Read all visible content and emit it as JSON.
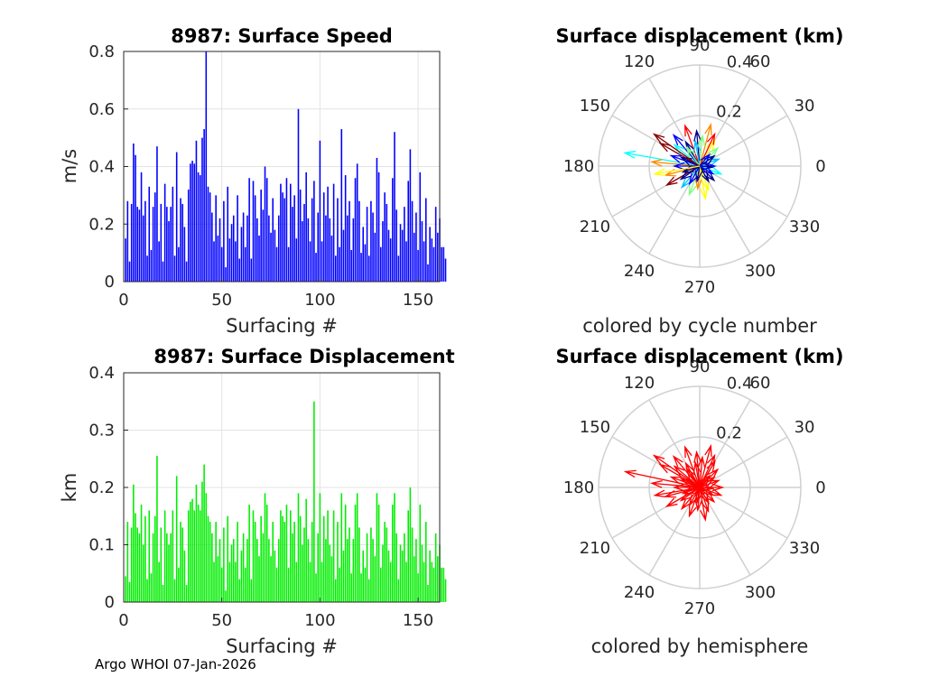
{
  "footer": "Argo WHOI 07-Jan-2026",
  "chart_data": [
    {
      "type": "bar",
      "title": "8987: Surface Speed",
      "xlabel": "Surfacing #",
      "ylabel": "m/s",
      "color": "#0000ff",
      "xlim": [
        0,
        161
      ],
      "ylim": [
        0,
        0.8
      ],
      "xticks": [
        0,
        50,
        100,
        150
      ],
      "yticks": [
        0,
        0.2,
        0.4,
        0.6,
        0.8
      ],
      "x_start": 1,
      "values": [
        0.15,
        0.28,
        0.07,
        0.27,
        0.48,
        0.44,
        0.26,
        0.25,
        0.38,
        0.23,
        0.28,
        0.09,
        0.33,
        0.11,
        0.26,
        0.31,
        0.47,
        0.14,
        0.27,
        0.07,
        0.34,
        0.26,
        0.21,
        0.26,
        0.33,
        0.09,
        0.45,
        0.12,
        0.29,
        0.27,
        0.19,
        0.07,
        0.32,
        0.41,
        0.42,
        0.41,
        0.49,
        0.38,
        0.37,
        0.5,
        0.53,
        0.8,
        0.33,
        0.31,
        0.24,
        0.14,
        0.3,
        0.16,
        0.22,
        0.12,
        0.28,
        0.05,
        0.33,
        0.15,
        0.2,
        0.23,
        0.14,
        0.3,
        0.08,
        0.19,
        0.24,
        0.12,
        0.23,
        0.36,
        0.08,
        0.35,
        0.3,
        0.22,
        0.16,
        0.32,
        0.25,
        0.4,
        0.36,
        0.23,
        0.17,
        0.29,
        0.18,
        0.12,
        0.23,
        0.34,
        0.31,
        0.29,
        0.36,
        0.12,
        0.34,
        0.26,
        0.3,
        0.15,
        0.6,
        0.32,
        0.21,
        0.27,
        0.38,
        0.22,
        0.14,
        0.29,
        0.35,
        0.1,
        0.24,
        0.49,
        0.14,
        0.31,
        0.23,
        0.33,
        0.22,
        0.16,
        0.34,
        0.09,
        0.29,
        0.12,
        0.53,
        0.18,
        0.37,
        0.23,
        0.28,
        0.11,
        0.22,
        0.36,
        0.41,
        0.28,
        0.1,
        0.19,
        0.13,
        0.26,
        0.09,
        0.28,
        0.24,
        0.17,
        0.43,
        0.38,
        0.12,
        0.21,
        0.31,
        0.27,
        0.18,
        0.15,
        0.36,
        0.52,
        0.25,
        0.09,
        0.2,
        0.18,
        0.26,
        0.14,
        0.35,
        0.46,
        0.28,
        0.17,
        0.24,
        0.11,
        0.38,
        0.21,
        0.14,
        0.29,
        0.06,
        0.19,
        0.15,
        0.12,
        0.26,
        0.17,
        0.22,
        0.12,
        0.12,
        0.08
      ]
    },
    {
      "type": "bar",
      "title": "8987: Surface Displacement",
      "xlabel": "Surfacing #",
      "ylabel": "km",
      "color": "#00ee00",
      "xlim": [
        0,
        161
      ],
      "ylim": [
        0,
        0.4
      ],
      "xticks": [
        0,
        50,
        100,
        150
      ],
      "yticks": [
        0,
        0.1,
        0.2,
        0.3,
        0.4
      ],
      "x_start": 1,
      "values": [
        0.045,
        0.14,
        0.035,
        0.13,
        0.205,
        0.155,
        0.13,
        0.12,
        0.17,
        0.1,
        0.15,
        0.04,
        0.16,
        0.05,
        0.12,
        0.15,
        0.255,
        0.07,
        0.13,
        0.03,
        0.16,
        0.12,
        0.1,
        0.12,
        0.16,
        0.04,
        0.22,
        0.06,
        0.14,
        0.13,
        0.09,
        0.03,
        0.16,
        0.175,
        0.18,
        0.16,
        0.205,
        0.17,
        0.16,
        0.21,
        0.24,
        0.19,
        0.15,
        0.14,
        0.12,
        0.07,
        0.14,
        0.08,
        0.11,
        0.06,
        0.13,
        0.02,
        0.15,
        0.07,
        0.1,
        0.11,
        0.07,
        0.14,
        0.04,
        0.09,
        0.12,
        0.06,
        0.11,
        0.17,
        0.04,
        0.16,
        0.14,
        0.11,
        0.08,
        0.15,
        0.12,
        0.19,
        0.17,
        0.11,
        0.08,
        0.14,
        0.09,
        0.06,
        0.11,
        0.16,
        0.15,
        0.14,
        0.17,
        0.06,
        0.16,
        0.12,
        0.14,
        0.07,
        0.19,
        0.15,
        0.1,
        0.13,
        0.18,
        0.11,
        0.07,
        0.14,
        0.35,
        0.05,
        0.12,
        0.19,
        0.07,
        0.15,
        0.11,
        0.16,
        0.1,
        0.08,
        0.16,
        0.04,
        0.14,
        0.06,
        0.19,
        0.09,
        0.17,
        0.11,
        0.13,
        0.05,
        0.11,
        0.17,
        0.19,
        0.13,
        0.05,
        0.09,
        0.06,
        0.12,
        0.04,
        0.13,
        0.11,
        0.08,
        0.19,
        0.17,
        0.06,
        0.1,
        0.14,
        0.13,
        0.09,
        0.07,
        0.17,
        0.19,
        0.12,
        0.04,
        0.1,
        0.09,
        0.12,
        0.07,
        0.16,
        0.2,
        0.13,
        0.08,
        0.11,
        0.05,
        0.17,
        0.1,
        0.07,
        0.14,
        0.03,
        0.09,
        0.07,
        0.06,
        0.12,
        0.08,
        0.1,
        0.06,
        0.06,
        0.04
      ]
    },
    {
      "type": "polar-compass",
      "title": "Surface displacement (km)",
      "caption": "colored by cycle number",
      "rmax": 0.4,
      "rings": [
        0.2,
        0.4
      ],
      "ring_labels": [
        "0.2",
        "0.4"
      ],
      "angle_labels": [
        "0",
        "30",
        "60",
        "90",
        "120",
        "150",
        "180",
        "210",
        "240",
        "270",
        "300",
        "330"
      ],
      "arrow_colors": [
        "#00008b",
        "#0000ff",
        "#00bfff",
        "#00ffff",
        "#7fff7f",
        "#ffff00",
        "#ff8c00",
        "#ff0000",
        "#8b0000"
      ],
      "arrows": [
        {
          "a": 170,
          "r": 0.3,
          "c": 3
        },
        {
          "a": 150,
          "r": 0.18,
          "c": 8
        },
        {
          "a": 130,
          "r": 0.16,
          "c": 1
        },
        {
          "a": 110,
          "r": 0.17,
          "c": 7
        },
        {
          "a": 95,
          "r": 0.14,
          "c": 0
        },
        {
          "a": 75,
          "r": 0.17,
          "c": 6
        },
        {
          "a": 60,
          "r": 0.12,
          "c": 5
        },
        {
          "a": 45,
          "r": 0.1,
          "c": 4
        },
        {
          "a": 20,
          "r": 0.08,
          "c": 2
        },
        {
          "a": 0,
          "r": 0.06,
          "c": 1
        },
        {
          "a": -20,
          "r": 0.09,
          "c": 3
        },
        {
          "a": -45,
          "r": 0.08,
          "c": 0
        },
        {
          "a": -70,
          "r": 0.1,
          "c": 5
        },
        {
          "a": -95,
          "r": 0.09,
          "c": 6
        },
        {
          "a": -110,
          "r": 0.12,
          "c": 4
        },
        {
          "a": -130,
          "r": 0.11,
          "c": 2
        },
        {
          "a": -150,
          "r": 0.15,
          "c": 8
        },
        {
          "a": -165,
          "r": 0.14,
          "c": 6
        },
        {
          "a": 175,
          "r": 0.19,
          "c": 6
        },
        {
          "a": 160,
          "r": 0.12,
          "c": 1
        },
        {
          "a": 140,
          "r": 0.13,
          "c": 3
        },
        {
          "a": 120,
          "r": 0.11,
          "c": 0
        },
        {
          "a": 100,
          "r": 0.1,
          "c": 2
        },
        {
          "a": 85,
          "r": 0.12,
          "c": 4
        },
        {
          "a": 65,
          "r": 0.14,
          "c": 7
        },
        {
          "a": 35,
          "r": 0.07,
          "c": 0
        },
        {
          "a": -5,
          "r": 0.05,
          "c": 0
        },
        {
          "a": -30,
          "r": 0.06,
          "c": 1
        },
        {
          "a": -60,
          "r": 0.07,
          "c": 0
        },
        {
          "a": -120,
          "r": 0.08,
          "c": 1
        },
        {
          "a": -145,
          "r": 0.09,
          "c": 0
        },
        {
          "a": 180,
          "r": 0.1,
          "c": 1
        },
        {
          "a": 155,
          "r": 0.08,
          "c": 0
        },
        {
          "a": 125,
          "r": 0.09,
          "c": 4
        },
        {
          "a": -80,
          "r": 0.13,
          "c": 5
        },
        {
          "a": -100,
          "r": 0.06,
          "c": 0
        },
        {
          "a": 50,
          "r": 0.06,
          "c": 1
        },
        {
          "a": -160,
          "r": 0.07,
          "c": 0
        },
        {
          "a": 145,
          "r": 0.22,
          "c": 8
        },
        {
          "a": -170,
          "r": 0.18,
          "c": 5
        }
      ]
    },
    {
      "type": "polar-compass",
      "title": "Surface displacement (km)",
      "caption": "colored by hemisphere",
      "rmax": 0.4,
      "rings": [
        0.2,
        0.4
      ],
      "ring_labels": [
        "0.2",
        "0.4"
      ],
      "angle_labels": [
        "0",
        "30",
        "60",
        "90",
        "120",
        "150",
        "180",
        "210",
        "240",
        "270",
        "300",
        "330"
      ],
      "arrow_colors": [
        "#ff0000"
      ],
      "arrows": [
        {
          "a": 168,
          "r": 0.3,
          "c": 0
        },
        {
          "a": 150,
          "r": 0.18,
          "c": 0
        },
        {
          "a": 130,
          "r": 0.16,
          "c": 0
        },
        {
          "a": 110,
          "r": 0.17,
          "c": 0
        },
        {
          "a": 95,
          "r": 0.14,
          "c": 0
        },
        {
          "a": 75,
          "r": 0.17,
          "c": 0
        },
        {
          "a": 60,
          "r": 0.12,
          "c": 0
        },
        {
          "a": 45,
          "r": 0.1,
          "c": 0
        },
        {
          "a": 20,
          "r": 0.08,
          "c": 0
        },
        {
          "a": 0,
          "r": 0.09,
          "c": 0
        },
        {
          "a": -20,
          "r": 0.09,
          "c": 0
        },
        {
          "a": -45,
          "r": 0.08,
          "c": 0
        },
        {
          "a": -70,
          "r": 0.1,
          "c": 0
        },
        {
          "a": -95,
          "r": 0.09,
          "c": 0
        },
        {
          "a": -110,
          "r": 0.12,
          "c": 0
        },
        {
          "a": -130,
          "r": 0.11,
          "c": 0
        },
        {
          "a": -150,
          "r": 0.15,
          "c": 0
        },
        {
          "a": -165,
          "r": 0.14,
          "c": 0
        },
        {
          "a": 175,
          "r": 0.19,
          "c": 0
        },
        {
          "a": 160,
          "r": 0.12,
          "c": 0
        },
        {
          "a": 140,
          "r": 0.13,
          "c": 0
        },
        {
          "a": 120,
          "r": 0.11,
          "c": 0
        },
        {
          "a": 100,
          "r": 0.1,
          "c": 0
        },
        {
          "a": 85,
          "r": 0.12,
          "c": 0
        },
        {
          "a": 65,
          "r": 0.14,
          "c": 0
        },
        {
          "a": 35,
          "r": 0.07,
          "c": 0
        },
        {
          "a": -5,
          "r": 0.05,
          "c": 0
        },
        {
          "a": -30,
          "r": 0.06,
          "c": 0
        },
        {
          "a": -60,
          "r": 0.07,
          "c": 0
        },
        {
          "a": -120,
          "r": 0.08,
          "c": 0
        },
        {
          "a": -145,
          "r": 0.09,
          "c": 0
        },
        {
          "a": 180,
          "r": 0.1,
          "c": 0
        },
        {
          "a": 155,
          "r": 0.08,
          "c": 0
        },
        {
          "a": 125,
          "r": 0.09,
          "c": 0
        },
        {
          "a": -80,
          "r": 0.13,
          "c": 0
        },
        {
          "a": -100,
          "r": 0.06,
          "c": 0
        },
        {
          "a": 50,
          "r": 0.06,
          "c": 0
        },
        {
          "a": -160,
          "r": 0.07,
          "c": 0
        },
        {
          "a": 145,
          "r": 0.22,
          "c": 0
        },
        {
          "a": -170,
          "r": 0.18,
          "c": 0
        }
      ]
    }
  ]
}
